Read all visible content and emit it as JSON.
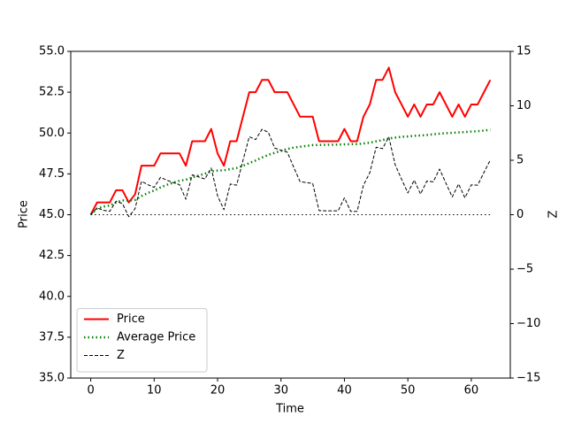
{
  "chart_data": {
    "type": "line",
    "xlabel": "Time",
    "ylabel": "Price",
    "y2label": "Z",
    "x": [
      0,
      1,
      2,
      3,
      4,
      5,
      6,
      7,
      8,
      9,
      10,
      11,
      12,
      13,
      14,
      15,
      16,
      17,
      18,
      19,
      20,
      21,
      22,
      23,
      24,
      25,
      26,
      27,
      28,
      29,
      30,
      31,
      32,
      33,
      34,
      35,
      36,
      37,
      38,
      39,
      40,
      41,
      42,
      43,
      44,
      45,
      46,
      47,
      48,
      49,
      50,
      51,
      52,
      53,
      54,
      55,
      56,
      57,
      58,
      59,
      60,
      61,
      62,
      63
    ],
    "series": [
      {
        "name": "Price",
        "color": "#ff0000",
        "style": "solid",
        "width": 2,
        "axis": "y",
        "values": [
          45.0,
          45.75,
          45.75,
          45.75,
          46.5,
          46.5,
          45.75,
          46.25,
          48.0,
          48.0,
          48.0,
          48.75,
          48.75,
          48.75,
          48.75,
          48.0,
          49.5,
          49.5,
          49.5,
          50.25,
          48.75,
          48.0,
          49.5,
          49.5,
          51.0,
          52.5,
          52.5,
          53.25,
          53.25,
          52.5,
          52.5,
          52.5,
          51.75,
          51.0,
          51.0,
          51.0,
          49.5,
          49.5,
          49.5,
          49.5,
          50.25,
          49.5,
          49.5,
          51.0,
          51.75,
          53.25,
          53.25,
          54.0,
          52.5,
          51.75,
          51.0,
          51.75,
          51.0,
          51.75,
          51.75,
          52.5,
          51.75,
          51.0,
          51.75,
          51.0,
          51.75,
          51.75,
          52.5,
          53.25
        ]
      },
      {
        "name": "Average Price",
        "color": "#008000",
        "style": "dotted",
        "width": 2.5,
        "axis": "y",
        "values": [
          45.0,
          45.38,
          45.5,
          45.56,
          45.75,
          45.88,
          45.86,
          45.91,
          46.14,
          46.33,
          46.48,
          46.67,
          46.83,
          46.96,
          47.08,
          47.14,
          47.28,
          47.4,
          47.51,
          47.65,
          47.7,
          47.72,
          47.79,
          47.86,
          47.99,
          48.16,
          48.32,
          48.5,
          48.66,
          48.79,
          48.91,
          49.02,
          49.11,
          49.16,
          49.21,
          49.26,
          49.27,
          49.28,
          49.28,
          49.29,
          49.31,
          49.32,
          49.32,
          49.36,
          49.41,
          49.49,
          49.57,
          49.67,
          49.72,
          49.77,
          49.79,
          49.83,
          49.85,
          49.88,
          49.92,
          49.96,
          49.99,
          50.01,
          50.04,
          50.06,
          50.09,
          50.11,
          50.15,
          50.2
        ]
      },
      {
        "name": "Z",
        "color": "#000000",
        "style": "dashed",
        "width": 1,
        "axis": "y2",
        "values": [
          0,
          0.62,
          0.41,
          0.31,
          1.24,
          1.02,
          -0.18,
          0.56,
          3.07,
          2.76,
          2.51,
          3.43,
          3.17,
          2.95,
          2.76,
          1.42,
          3.66,
          3.47,
          3.28,
          4.29,
          1.73,
          0.46,
          2.82,
          2.71,
          4.97,
          7.16,
          6.9,
          7.84,
          7.57,
          6.12,
          5.92,
          5.74,
          4.36,
          3.04,
          2.95,
          2.87,
          0.38,
          0.36,
          0.36,
          0.35,
          1.55,
          0.3,
          0.3,
          2.71,
          3.86,
          6.2,
          6.07,
          7.14,
          4.59,
          3.27,
          2.0,
          3.17,
          1.9,
          3.09,
          3.02,
          4.19,
          2.9,
          1.63,
          2.82,
          1.55,
          2.74,
          2.71,
          3.88,
          5.03
        ]
      }
    ],
    "hlines": [
      {
        "axis": "y2",
        "value": 0,
        "color": "#000000",
        "style": "dotted"
      }
    ],
    "xlim": [
      -3.15,
      66.15
    ],
    "xticks": [
      0,
      10,
      20,
      30,
      40,
      50,
      60
    ],
    "ylim": [
      35,
      55
    ],
    "yticks": [
      {
        "value": 35,
        "label": "35.0"
      },
      37.5,
      {
        "value": 40,
        "label": "40.0"
      },
      42.5,
      {
        "value": 45,
        "label": "45.0"
      },
      47.5,
      {
        "value": 50,
        "label": "50.0"
      },
      52.5,
      {
        "value": 55,
        "label": "55.0"
      }
    ],
    "y2lim": [
      -15,
      15
    ],
    "y2ticks": [
      {
        "value": -15,
        "label": "−15"
      },
      {
        "value": -10,
        "label": "−10"
      },
      {
        "value": -5,
        "label": "−5"
      },
      0,
      5,
      10,
      15
    ],
    "legend": "lower left",
    "grid": false
  }
}
